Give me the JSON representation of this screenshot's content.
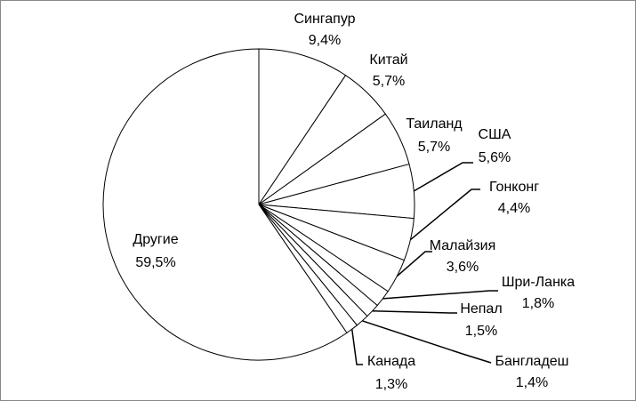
{
  "chart_data": {
    "type": "pie",
    "categories": [
      "Сингапур",
      "Китай",
      "Таиланд",
      "США",
      "Гонконг",
      "Малайзия",
      "Шри-Ланка",
      "Непал",
      "Бангладеш",
      "Канада",
      "Другие"
    ],
    "values": [
      9.4,
      5.7,
      5.7,
      5.6,
      4.4,
      3.6,
      1.8,
      1.5,
      1.4,
      1.3,
      59.5
    ],
    "value_labels": [
      "9,4%",
      "5,7%",
      "5,7%",
      "5,6%",
      "4,4%",
      "3,6%",
      "1,8%",
      "1,5%",
      "1,4%",
      "1,3%",
      "59,5%"
    ],
    "color": "#ffffff"
  }
}
